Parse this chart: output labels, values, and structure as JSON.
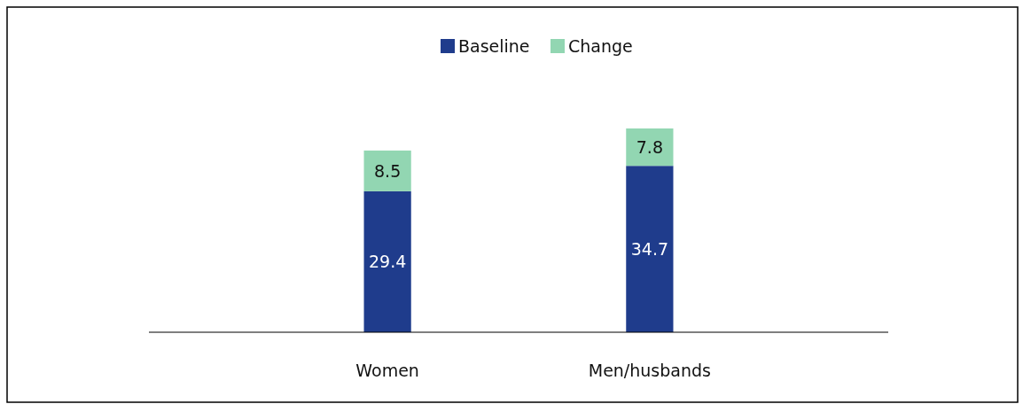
{
  "chart_data": {
    "type": "bar",
    "stacked": true,
    "categories": [
      "Women",
      "Men/husbands"
    ],
    "series": [
      {
        "name": "Baseline",
        "color": "#1f3c8c",
        "values": [
          29.4,
          34.7
        ]
      },
      {
        "name": "Change",
        "color": "#92d6b2",
        "values": [
          8.5,
          7.8
        ]
      }
    ],
    "data_labels": true,
    "legend": "top"
  }
}
